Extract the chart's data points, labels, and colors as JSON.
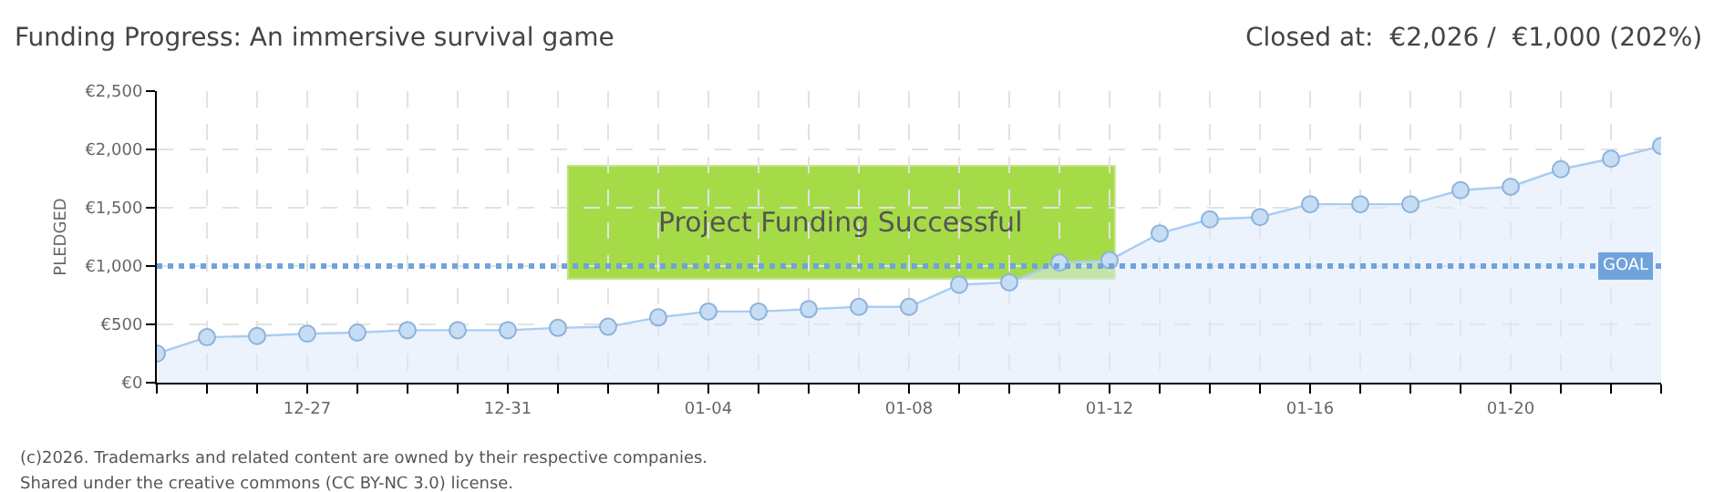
{
  "chart_data": {
    "type": "area",
    "title": "Funding Progress: An immersive survival game",
    "subtitle": "Closed at:  €2,026 /  €1,000 (202%)",
    "ylabel": "PLEDGED",
    "categories": [
      null,
      null,
      null,
      "12-27",
      null,
      null,
      null,
      "12-31",
      null,
      null,
      null,
      "01-04",
      null,
      null,
      null,
      "01-08",
      null,
      null,
      null,
      "01-12",
      null,
      null,
      null,
      "01-16",
      null,
      null,
      null,
      "01-20",
      null,
      null,
      null
    ],
    "series": [
      {
        "color": "#a9cdf2",
        "values": [
          250,
          390,
          400,
          420,
          430,
          450,
          450,
          450,
          470,
          480,
          560,
          610,
          610,
          630,
          650,
          650,
          840,
          860,
          1030,
          1050,
          1280,
          1400,
          1420,
          1530,
          1530,
          1530,
          1650,
          1680,
          1830,
          1920,
          2030
        ]
      }
    ],
    "marker": "circle",
    "line_style": "solid",
    "grid": true,
    "ylim": [
      0,
      2500
    ],
    "yticks": [
      {
        "value": 0,
        "label": "€0"
      },
      {
        "value": 500,
        "label": "€500"
      },
      {
        "value": 1000,
        "label": "€1,000"
      },
      {
        "value": 1500,
        "label": "€1,500"
      },
      {
        "value": 2000,
        "label": "€2,000"
      },
      {
        "value": 2500,
        "label": "€2,500"
      }
    ],
    "ref_lines": [
      {
        "axis": "y",
        "value": 1000,
        "label": "GOAL",
        "color": "#6fa3dc",
        "line_style": "dotted"
      }
    ],
    "annotations": [
      "Project Funding Successful",
      "(c)2026. Trademarks and related content are owned by their respective companies.",
      "Shared under the creative commons (CC BY-NC 3.0) license."
    ]
  }
}
